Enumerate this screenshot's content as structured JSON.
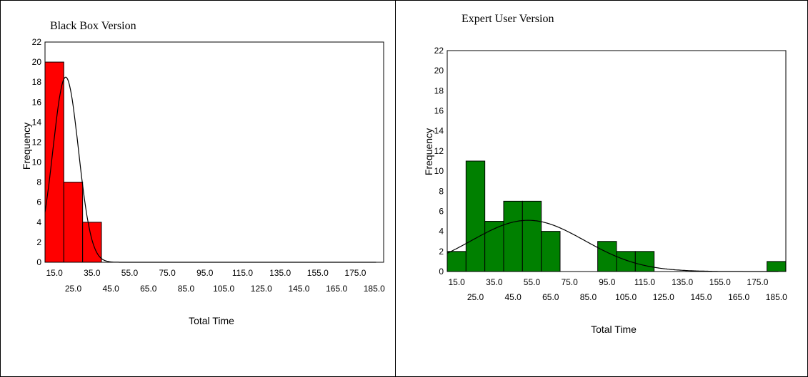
{
  "chart_data": [
    {
      "type": "bar",
      "title": "Black Box Version",
      "xlabel": "Total Time",
      "ylabel": "Frequency",
      "ylim": [
        0,
        22
      ],
      "yticks": [
        "0",
        "2",
        "4",
        "6",
        "8",
        "10",
        "12",
        "14",
        "16",
        "18",
        "20",
        "22"
      ],
      "xticks_top": [
        "15.0",
        "35.0",
        "55.0",
        "75.0",
        "95.0",
        "115.0",
        "135.0",
        "155.0",
        "175.0"
      ],
      "xticks_bottom": [
        "25.0",
        "45.0",
        "65.0",
        "85.0",
        "105.0",
        "125.0",
        "145.0",
        "165.0",
        "185.0"
      ],
      "bin_width": 10,
      "bins": [
        {
          "x": 10,
          "value": 20
        },
        {
          "x": 20,
          "value": 8
        },
        {
          "x": 30,
          "value": 4
        }
      ],
      "color": "#ff0000",
      "curve": {
        "type": "normal",
        "mean": 21,
        "sd": 6.8,
        "peak": 18.5
      }
    },
    {
      "type": "bar",
      "title": "Expert User Version",
      "xlabel": "Total Time",
      "ylabel": "Frequency",
      "ylim": [
        0,
        22
      ],
      "yticks": [
        "0",
        "2",
        "4",
        "6",
        "8",
        "10",
        "12",
        "14",
        "16",
        "18",
        "20",
        "22"
      ],
      "xticks_top": [
        "15.0",
        "35.0",
        "55.0",
        "75.0",
        "95.0",
        "115.0",
        "135.0",
        "155.0",
        "175.0"
      ],
      "xticks_bottom": [
        "25.0",
        "45.0",
        "65.0",
        "85.0",
        "105.0",
        "125.0",
        "145.0",
        "165.0",
        "185.0"
      ],
      "bin_width": 10,
      "bins": [
        {
          "x": 10,
          "value": 2
        },
        {
          "x": 20,
          "value": 11
        },
        {
          "x": 30,
          "value": 5
        },
        {
          "x": 40,
          "value": 7
        },
        {
          "x": 50,
          "value": 7
        },
        {
          "x": 60,
          "value": 4
        },
        {
          "x": 90,
          "value": 3
        },
        {
          "x": 100,
          "value": 2
        },
        {
          "x": 110,
          "value": 2
        },
        {
          "x": 180,
          "value": 1
        }
      ],
      "color": "#008000",
      "curve": {
        "type": "normal",
        "mean": 53,
        "sd": 30,
        "peak": 5.1
      }
    }
  ]
}
